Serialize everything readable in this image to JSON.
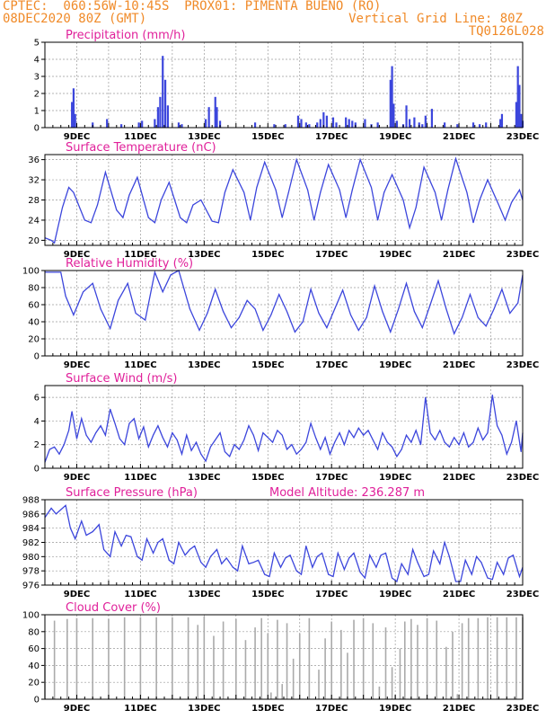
{
  "header": {
    "line1_left": "CPTEC:  060:56W-10:45S  PROX01: PIMENTA BUENO (RO)",
    "line2_left": "08DEC2020 80Z (GMT)",
    "line2_right": "Vertical Grid Line: 80Z",
    "line3_right": "TQ0126L028"
  },
  "colors": {
    "series": "#3c46dc",
    "title": "#e0209a",
    "header": "#f08a28",
    "cloud": "#aaaaaa"
  },
  "date_ticks": [
    "9DEC",
    "11DEC",
    "13DEC",
    "15DEC",
    "17DEC",
    "19DEC",
    "21DEC",
    "23DEC"
  ],
  "chart_data": [
    {
      "type": "bar",
      "title": "Precipitation (mm/h)",
      "ylim": [
        0,
        5
      ],
      "yticks": [
        "0",
        "1",
        "2",
        "3",
        "4",
        "5"
      ],
      "x": [
        8.85,
        8.9,
        8.95,
        9.5,
        9.95,
        10.4,
        10.95,
        11.05,
        11.45,
        11.55,
        11.62,
        11.7,
        11.78,
        11.86,
        12.2,
        12.3,
        13.05,
        13.15,
        13.35,
        13.4,
        13.5,
        14.6,
        15.2,
        15.55,
        15.95,
        16.05,
        16.2,
        16.3,
        16.55,
        16.65,
        16.75,
        16.85,
        17.05,
        17.15,
        17.45,
        17.55,
        17.65,
        17.75,
        18.05,
        18.25,
        18.45,
        18.85,
        18.9,
        18.95,
        19.05,
        19.25,
        19.35,
        19.45,
        19.6,
        19.75,
        19.85,
        19.95,
        20.15,
        20.55,
        20.95,
        21.45,
        21.65,
        21.85,
        22.3,
        22.35,
        22.8,
        22.85,
        22.9,
        22.95,
        23.0
      ],
      "values": [
        1.5,
        2.3,
        0.8,
        0.3,
        0.5,
        0.2,
        0.3,
        0.4,
        0.5,
        1.2,
        1.8,
        4.2,
        2.8,
        1.3,
        0.3,
        0.2,
        0.5,
        1.2,
        1.8,
        1.2,
        0.4,
        0.3,
        0.2,
        0.2,
        0.7,
        0.5,
        0.3,
        0.2,
        0.3,
        0.5,
        0.9,
        0.7,
        0.6,
        0.3,
        0.6,
        0.5,
        0.4,
        0.3,
        0.5,
        0.2,
        0.3,
        2.8,
        3.6,
        1.4,
        0.4,
        0.2,
        1.3,
        0.5,
        0.6,
        0.3,
        0.2,
        0.7,
        1.1,
        0.3,
        0.2,
        0.3,
        0.2,
        0.3,
        0.5,
        0.8,
        1.5,
        3.6,
        2.5,
        0.8,
        0.4
      ]
    },
    {
      "type": "line",
      "title": "Surface Temperature (nC)",
      "ylim": [
        19,
        37
      ],
      "yticks": [
        "20",
        "24",
        "28",
        "32",
        "36"
      ],
      "x": [
        8.0,
        8.2,
        8.3,
        8.55,
        8.75,
        8.9,
        9.25,
        9.45,
        9.65,
        9.9,
        10.25,
        10.45,
        10.65,
        10.9,
        11.25,
        11.45,
        11.65,
        11.9,
        12.25,
        12.45,
        12.65,
        12.9,
        13.25,
        13.45,
        13.65,
        13.9,
        14.25,
        14.45,
        14.65,
        14.9,
        15.25,
        15.45,
        15.65,
        15.9,
        16.25,
        16.45,
        16.65,
        16.9,
        17.25,
        17.45,
        17.65,
        17.9,
        18.25,
        18.45,
        18.65,
        18.9,
        19.25,
        19.45,
        19.65,
        19.9,
        20.25,
        20.45,
        20.65,
        20.9,
        21.25,
        21.45,
        21.65,
        21.9,
        22.25,
        22.45,
        22.65,
        22.9,
        23.0
      ],
      "values": [
        20.5,
        20.0,
        19.5,
        26.5,
        30.5,
        29.5,
        24.0,
        23.5,
        27.0,
        33.5,
        26.0,
        24.5,
        29.0,
        32.5,
        24.5,
        23.5,
        28.0,
        31.5,
        24.5,
        23.5,
        27.0,
        28.0,
        23.8,
        23.5,
        29.5,
        34.0,
        29.5,
        24.0,
        30.5,
        35.5,
        30.0,
        24.5,
        29.5,
        36.0,
        30.0,
        24.0,
        29.5,
        35.0,
        30.0,
        24.5,
        30.0,
        36.0,
        30.5,
        24.0,
        29.5,
        33.0,
        28.0,
        22.5,
        26.5,
        34.5,
        29.5,
        24.0,
        30.0,
        36.2,
        29.5,
        23.5,
        28.0,
        32.0,
        27.0,
        24.0,
        27.5,
        30.0,
        28.0
      ]
    },
    {
      "type": "line",
      "title": "Relative Humidity (%)",
      "ylim": [
        0,
        100
      ],
      "yticks": [
        "0",
        "20",
        "40",
        "60",
        "80",
        "100"
      ],
      "x": [
        8.0,
        8.5,
        8.65,
        8.9,
        9.2,
        9.5,
        9.75,
        10.05,
        10.3,
        10.6,
        10.85,
        11.15,
        11.45,
        11.7,
        11.95,
        12.2,
        12.55,
        12.85,
        13.1,
        13.35,
        13.6,
        13.85,
        14.1,
        14.35,
        14.6,
        14.85,
        15.1,
        15.35,
        15.6,
        15.85,
        16.1,
        16.35,
        16.6,
        16.85,
        17.1,
        17.35,
        17.6,
        17.85,
        18.1,
        18.35,
        18.6,
        18.85,
        19.1,
        19.35,
        19.6,
        19.85,
        20.1,
        20.35,
        20.6,
        20.85,
        21.1,
        21.35,
        21.6,
        21.85,
        22.1,
        22.35,
        22.6,
        22.85,
        23.0
      ],
      "values": [
        98,
        98,
        70,
        48,
        75,
        85,
        55,
        32,
        65,
        85,
        50,
        42,
        98,
        75,
        95,
        100,
        55,
        30,
        50,
        78,
        52,
        33,
        45,
        65,
        55,
        30,
        48,
        72,
        52,
        28,
        40,
        78,
        50,
        33,
        55,
        77,
        48,
        30,
        45,
        82,
        52,
        28,
        55,
        85,
        52,
        33,
        60,
        88,
        55,
        26,
        45,
        72,
        45,
        35,
        55,
        78,
        50,
        62,
        95
      ]
    },
    {
      "type": "line",
      "title": "Surface Wind (m/s)",
      "ylim": [
        0,
        7
      ],
      "yticks": [
        "0",
        "2",
        "4",
        "6"
      ],
      "x": [
        8.0,
        8.15,
        8.3,
        8.45,
        8.6,
        8.75,
        8.85,
        9.0,
        9.15,
        9.3,
        9.45,
        9.6,
        9.75,
        9.9,
        10.05,
        10.2,
        10.35,
        10.5,
        10.65,
        10.8,
        10.95,
        11.1,
        11.25,
        11.4,
        11.55,
        11.7,
        11.85,
        12.0,
        12.15,
        12.3,
        12.45,
        12.6,
        12.75,
        12.9,
        13.05,
        13.2,
        13.35,
        13.5,
        13.65,
        13.8,
        13.95,
        14.1,
        14.25,
        14.4,
        14.55,
        14.7,
        14.85,
        15.0,
        15.15,
        15.3,
        15.45,
        15.6,
        15.75,
        15.9,
        16.05,
        16.2,
        16.35,
        16.5,
        16.65,
        16.8,
        16.95,
        17.1,
        17.25,
        17.4,
        17.55,
        17.7,
        17.85,
        18.0,
        18.15,
        18.3,
        18.45,
        18.6,
        18.75,
        18.9,
        19.05,
        19.2,
        19.35,
        19.5,
        19.65,
        19.8,
        19.95,
        20.1,
        20.25,
        20.4,
        20.55,
        20.7,
        20.85,
        21.0,
        21.15,
        21.3,
        21.45,
        21.6,
        21.75,
        21.9,
        22.05,
        22.2,
        22.35,
        22.5,
        22.65,
        22.8,
        22.95,
        23.0
      ],
      "values": [
        0.5,
        1.6,
        1.8,
        1.2,
        2.0,
        3.2,
        4.8,
        2.5,
        4.2,
        2.8,
        2.2,
        3.0,
        3.6,
        2.8,
        5.0,
        3.8,
        2.5,
        2.0,
        3.8,
        4.2,
        2.5,
        3.5,
        1.8,
        2.8,
        3.6,
        2.6,
        1.8,
        3.0,
        2.4,
        1.2,
        2.8,
        1.5,
        2.2,
        1.2,
        0.6,
        1.8,
        2.4,
        3.0,
        1.4,
        1.0,
        2.0,
        1.6,
        2.4,
        3.6,
        2.8,
        1.5,
        3.0,
        2.6,
        2.2,
        3.2,
        2.8,
        1.6,
        2.0,
        1.2,
        1.6,
        2.2,
        3.8,
        2.6,
        1.6,
        2.6,
        1.2,
        2.2,
        3.0,
        2.0,
        3.2,
        2.6,
        3.4,
        2.8,
        3.2,
        2.4,
        1.6,
        3.0,
        2.2,
        1.8,
        1.0,
        1.6,
        2.8,
        2.2,
        3.2,
        2.0,
        6.0,
        3.0,
        2.4,
        3.2,
        2.2,
        1.8,
        2.6,
        2.0,
        3.0,
        1.8,
        2.2,
        3.4,
        2.4,
        3.0,
        6.2,
        3.6,
        2.8,
        1.2,
        2.2,
        4.0,
        1.4,
        3.0
      ]
    },
    {
      "type": "line",
      "title": "Surface Pressure (hPa)",
      "subtitle": "Model Altitude: 236.287  m",
      "ylim": [
        976,
        988
      ],
      "yticks": [
        "976",
        "978",
        "980",
        "982",
        "984",
        "986",
        "988"
      ],
      "x": [
        8.0,
        8.2,
        8.35,
        8.5,
        8.65,
        8.8,
        8.95,
        9.15,
        9.3,
        9.5,
        9.7,
        9.85,
        10.05,
        10.2,
        10.4,
        10.55,
        10.7,
        10.9,
        11.05,
        11.2,
        11.4,
        11.55,
        11.7,
        11.9,
        12.05,
        12.2,
        12.4,
        12.55,
        12.7,
        12.9,
        13.05,
        13.2,
        13.4,
        13.55,
        13.7,
        13.9,
        14.05,
        14.2,
        14.4,
        14.55,
        14.7,
        14.9,
        15.05,
        15.2,
        15.4,
        15.55,
        15.7,
        15.9,
        16.05,
        16.2,
        16.4,
        16.55,
        16.7,
        16.9,
        17.05,
        17.2,
        17.4,
        17.55,
        17.7,
        17.9,
        18.05,
        18.2,
        18.4,
        18.55,
        18.7,
        18.9,
        19.05,
        19.2,
        19.4,
        19.55,
        19.7,
        19.9,
        20.05,
        20.2,
        20.4,
        20.55,
        20.7,
        20.9,
        21.05,
        21.2,
        21.4,
        21.55,
        21.7,
        21.9,
        22.05,
        22.2,
        22.4,
        22.55,
        22.7,
        22.9,
        23.0
      ],
      "values": [
        985.5,
        986.8,
        986.0,
        986.6,
        987.2,
        984.0,
        982.5,
        985.0,
        983.0,
        983.5,
        984.5,
        981.0,
        980.0,
        983.5,
        981.5,
        983.0,
        982.8,
        980.0,
        979.5,
        982.5,
        980.5,
        982.0,
        982.5,
        979.5,
        979.0,
        982.0,
        980.2,
        981.0,
        981.5,
        979.2,
        978.5,
        980.0,
        981.0,
        979.0,
        979.8,
        978.5,
        978.0,
        981.5,
        979.0,
        979.2,
        979.5,
        977.5,
        977.2,
        980.5,
        978.5,
        979.8,
        980.2,
        978.0,
        977.5,
        981.5,
        978.5,
        980.0,
        980.5,
        977.5,
        977.2,
        980.5,
        978.2,
        979.8,
        980.5,
        977.8,
        977.0,
        980.2,
        978.5,
        980.2,
        980.5,
        977.0,
        976.5,
        979.0,
        977.5,
        981.0,
        979.2,
        977.2,
        977.5,
        980.8,
        979.0,
        982.0,
        980.0,
        976.5,
        976.5,
        979.5,
        977.5,
        980.0,
        979.2,
        977.0,
        976.8,
        979.2,
        977.5,
        979.8,
        980.2,
        977.2,
        978.5
      ]
    },
    {
      "type": "bar",
      "title": "Cloud Cover (%)",
      "ylim": [
        0,
        100
      ],
      "yticks": [
        "0",
        "20",
        "40",
        "60",
        "80",
        "100"
      ],
      "x": [
        8.0,
        8.3,
        8.7,
        9.0,
        9.5,
        10.0,
        10.5,
        11.0,
        11.5,
        12.0,
        12.5,
        12.8,
        13.0,
        13.3,
        13.6,
        14.0,
        14.3,
        14.6,
        14.8,
        15.0,
        15.1,
        15.3,
        15.45,
        15.6,
        15.8,
        16.0,
        16.3,
        16.6,
        16.8,
        17.0,
        17.3,
        17.5,
        17.7,
        18.0,
        18.3,
        18.5,
        18.7,
        18.9,
        19.0,
        19.15,
        19.3,
        19.5,
        19.7,
        20.0,
        20.3,
        20.6,
        20.8,
        20.95,
        21.1,
        21.3,
        21.6,
        21.9,
        22.2,
        22.5,
        22.8,
        23.0
      ],
      "values": [
        60,
        93,
        95,
        96,
        96,
        95,
        97,
        97,
        97,
        97,
        97,
        88,
        98,
        75,
        92,
        95,
        70,
        85,
        96,
        78,
        8,
        94,
        18,
        90,
        48,
        78,
        96,
        35,
        72,
        92,
        82,
        55,
        94,
        96,
        90,
        15,
        85,
        38,
        5,
        60,
        92,
        95,
        88,
        96,
        93,
        62,
        80,
        6,
        90,
        96,
        96,
        97,
        97,
        97,
        97,
        97
      ]
    }
  ]
}
